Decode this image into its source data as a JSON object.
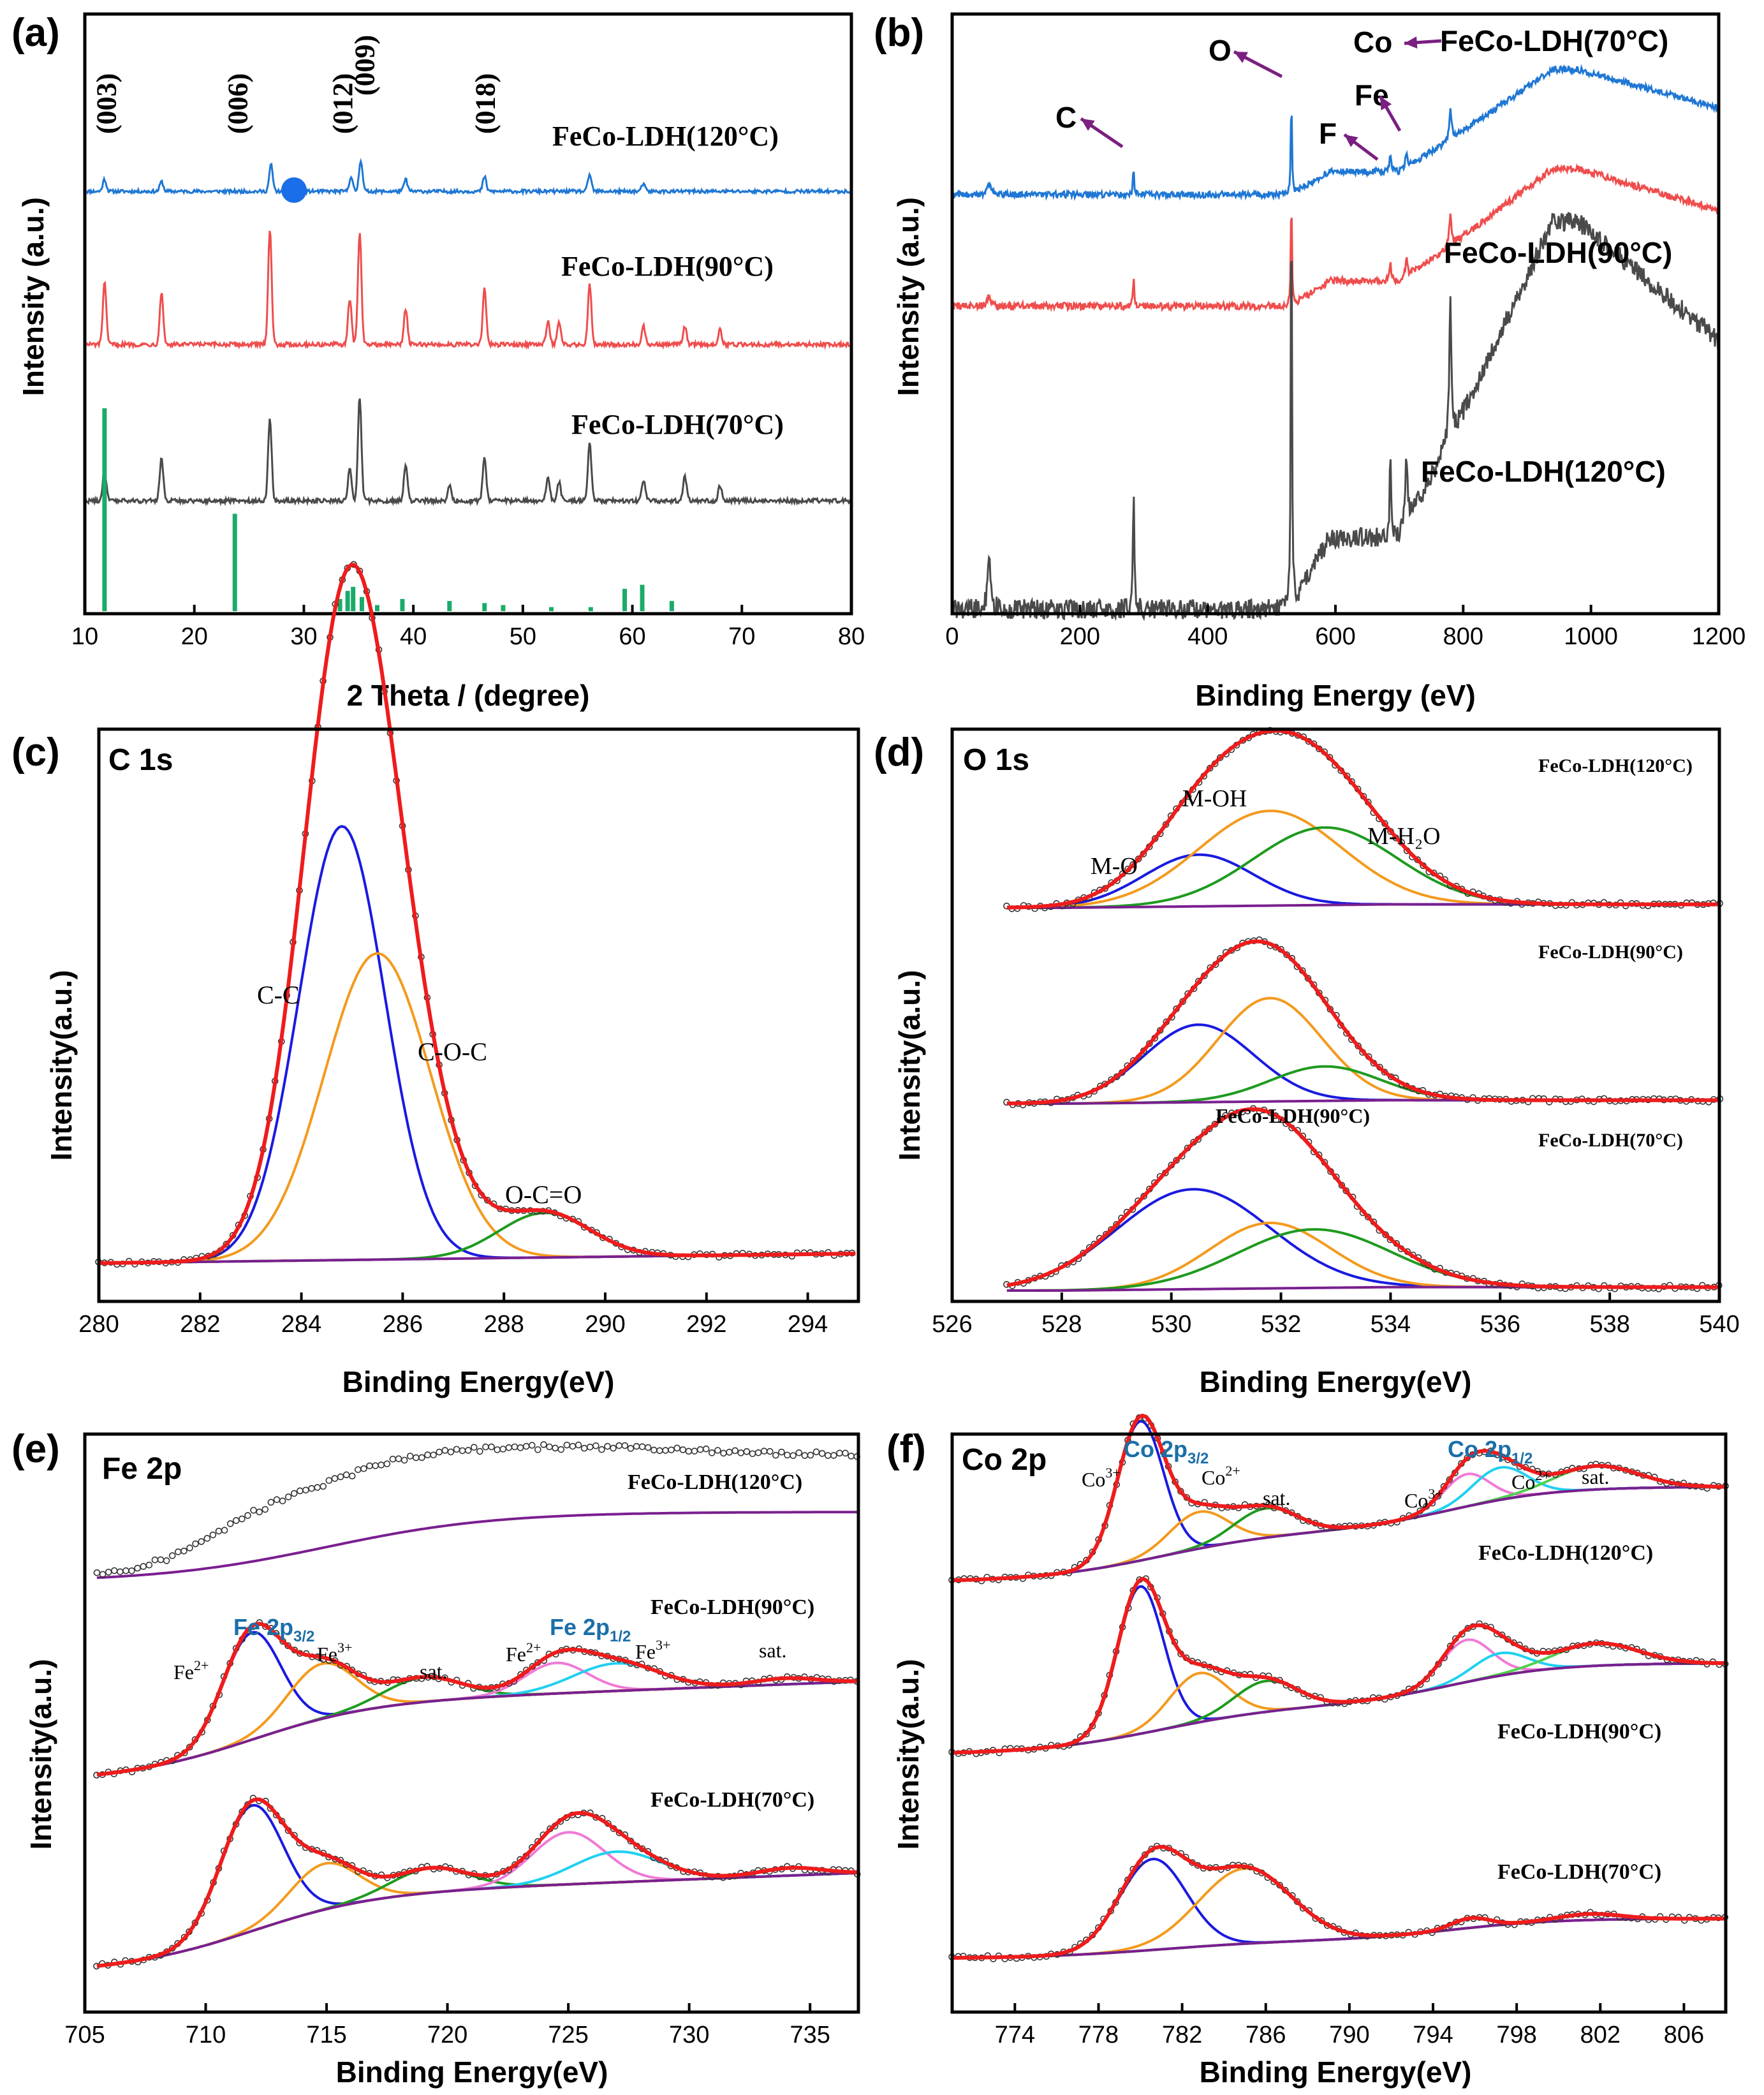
{
  "figure": {
    "colors": {
      "blue": "#1f77d4",
      "red": "#ef4d4d",
      "gray": "#4a4a4a",
      "green": "#1aab6a",
      "fitRed": "#ee1c1c",
      "fitBlue": "#1a1ae0",
      "orange": "#f39a1e",
      "fitGreen": "#1f9a1f",
      "purple": "#7a1f8f",
      "pink": "#f07ad6",
      "cyan": "#20d0f0",
      "lime": "#50d050",
      "arrow": "#7a2080",
      "peakBlue": "#1a6fa8"
    }
  },
  "chart_data": [
    {
      "panel": "(a)",
      "type": "line",
      "xlabel": "2 Theta / (degree)",
      "ylabel": "Intensity (a.u.)",
      "xlim": [
        10,
        80
      ],
      "xticks": [
        "10",
        "20",
        "30",
        "40",
        "50",
        "60",
        "70",
        "80"
      ],
      "series": [
        {
          "name": "FeCo-LDH(120°C)",
          "color": "blue",
          "peaks": [
            [
              11.8,
              0.5
            ],
            [
              17,
              0.4
            ],
            [
              27,
              1.1
            ],
            [
              34.3,
              0.6
            ],
            [
              35.2,
              1.3
            ],
            [
              39.3,
              0.5
            ],
            [
              46.5,
              0.6
            ],
            [
              56.1,
              0.7
            ],
            [
              61,
              0.3
            ]
          ]
        },
        {
          "name": "FeCo-LDH(90°C)",
          "color": "red",
          "peaks": [
            [
              11.8,
              2.0
            ],
            [
              17,
              1.7
            ],
            [
              26.9,
              3.8
            ],
            [
              34.2,
              1.5
            ],
            [
              35.1,
              3.7
            ],
            [
              39.3,
              1.2
            ],
            [
              46.5,
              1.8
            ],
            [
              52.3,
              0.8
            ],
            [
              53.3,
              0.7
            ],
            [
              56.1,
              2.0
            ],
            [
              61,
              0.6
            ],
            [
              64.8,
              0.6
            ],
            [
              68,
              0.5
            ]
          ]
        },
        {
          "name": "FeCo-LDH(70°C)",
          "color": "gray",
          "peaks": [
            [
              11.8,
              1.0
            ],
            [
              17,
              1.4
            ],
            [
              26.9,
              2.7
            ],
            [
              34.2,
              1.1
            ],
            [
              35.1,
              3.4
            ],
            [
              39.3,
              1.2
            ],
            [
              43.3,
              0.5
            ],
            [
              46.5,
              1.4
            ],
            [
              52.3,
              0.8
            ],
            [
              53.3,
              0.6
            ],
            [
              56.1,
              1.9
            ],
            [
              61,
              0.7
            ],
            [
              64.8,
              0.8
            ],
            [
              68,
              0.5
            ]
          ]
        }
      ],
      "reference_sticks": {
        "color": "green",
        "x": [
          11.8,
          23.7,
          33.3,
          34,
          34.5,
          35.3,
          36.7,
          39,
          43.3,
          46.5,
          48.2,
          52.6,
          56.2,
          59.3,
          60.9,
          63.6
        ],
        "height": [
          1.0,
          0.48,
          0.06,
          0.1,
          0.12,
          0.07,
          0.03,
          0.06,
          0.05,
          0.04,
          0.03,
          0.02,
          0.02,
          0.11,
          0.13,
          0.05
        ]
      },
      "plane_labels": [
        {
          "text": "(003)",
          "x": 12
        },
        {
          "text": "(006)",
          "x": 24
        },
        {
          "text": "(012)",
          "x": 33.6
        },
        {
          "text": "(009)",
          "x": 35.6
        },
        {
          "text": "(018)",
          "x": 46.6
        }
      ],
      "marker_circle_x": 29.1
    },
    {
      "panel": "(b)",
      "type": "line",
      "xlabel": "Binding Energy (eV)",
      "ylabel": "Intensity (a.u.)",
      "xlim": [
        0,
        1200
      ],
      "xticks": [
        "0",
        "200",
        "400",
        "600",
        "800",
        "1000",
        "1200"
      ],
      "series": [
        {
          "name": "FeCo-LDH(70°C)",
          "color": "blue"
        },
        {
          "name": "FeCo-LDH(90°C)",
          "color": "red"
        },
        {
          "name": "FeCo-LDH(120°C)",
          "color": "gray"
        }
      ],
      "element_labels": [
        {
          "text": "C",
          "x": 284
        },
        {
          "text": "O",
          "x": 531
        },
        {
          "text": "F",
          "x": 686
        },
        {
          "text": "Fe",
          "x": 711
        },
        {
          "text": "Co",
          "x": 780
        }
      ]
    },
    {
      "panel": "(c)",
      "title": "C 1s",
      "type": "line",
      "xlabel": "Binding Energy(eV)",
      "ylabel": "Intensity(a.u.)",
      "xlim": [
        280,
        295
      ],
      "xticks": [
        "280",
        "282",
        "284",
        "286",
        "288",
        "290",
        "292",
        "294"
      ],
      "components": [
        {
          "name": "C-C",
          "center": 284.8,
          "amp": 0.68,
          "sigma": 0.85,
          "color": "fitBlue"
        },
        {
          "name": "C-O-C",
          "center": 285.5,
          "amp": 0.48,
          "sigma": 1.05,
          "color": "orange"
        },
        {
          "name": "O-C=O",
          "center": 288.8,
          "amp": 0.07,
          "sigma": 0.9,
          "color": "fitGreen"
        }
      ]
    },
    {
      "panel": "(d)",
      "title": "O 1s",
      "type": "line",
      "xlabel": "Binding Energy(eV)",
      "ylabel": "Intensity(a.u.)",
      "xlim": [
        526,
        540
      ],
      "xticks": [
        "526",
        "528",
        "530",
        "532",
        "534",
        "536",
        "538",
        "540"
      ],
      "component_labels": [
        "M-O",
        "M-OH",
        "M-H₂O"
      ],
      "series": [
        {
          "name": "FeCo-LDH(120°C)",
          "components": [
            [
              530.5,
              0.3,
              1.0
            ],
            [
              531.8,
              0.55,
              1.3
            ],
            [
              532.8,
              0.45,
              1.3
            ]
          ]
        },
        {
          "name": "FeCo-LDH(90°C)",
          "components": [
            [
              530.5,
              0.45,
              1.0
            ],
            [
              531.8,
              0.6,
              0.95
            ],
            [
              532.8,
              0.2,
              1.0
            ]
          ]
        },
        {
          "name": "FeCo-LDH(70°C)",
          "components": [
            [
              530.4,
              0.58,
              1.4
            ],
            [
              531.8,
              0.38,
              1.1
            ],
            [
              532.6,
              0.34,
              1.4
            ]
          ]
        }
      ],
      "annotation_text": "FeCo-LDH(90°C)"
    },
    {
      "panel": "(e)",
      "title": "Fe 2p",
      "type": "line",
      "xlabel": "Binding Energy(eV)",
      "ylabel": "Intensity(a.u.)",
      "xlim": [
        705,
        737
      ],
      "xticks": [
        "705",
        "710",
        "715",
        "720",
        "725",
        "730",
        "735"
      ],
      "series": [
        "FeCo-LDH(120°C)",
        "FeCo-LDH(90°C)",
        "FeCo-LDH(70°C)"
      ],
      "peak_labels": [
        "Fe 2p3/2",
        "Fe 2p1/2"
      ],
      "state_labels": [
        "Fe2+",
        "Fe3+",
        "sat.",
        "Fe2+",
        "Fe3+",
        "sat."
      ]
    },
    {
      "panel": "(f)",
      "title": "Co 2p",
      "type": "line",
      "xlabel": "Binding Energy(eV)",
      "ylabel": "Intensity(a.u.)",
      "xlim": [
        771,
        808
      ],
      "xticks": [
        "774",
        "778",
        "782",
        "786",
        "790",
        "794",
        "798",
        "802",
        "806"
      ],
      "series": [
        "FeCo-LDH(120°C)",
        "FeCo-LDH(90°C)",
        "FeCo-LDH(70°C)"
      ],
      "peak_labels": [
        "Co 2p3/2",
        "Co 2p1/2"
      ],
      "state_labels": [
        "Co3+",
        "Co2+",
        "sat.",
        "Co3+",
        "Co2+",
        "sat."
      ]
    }
  ]
}
